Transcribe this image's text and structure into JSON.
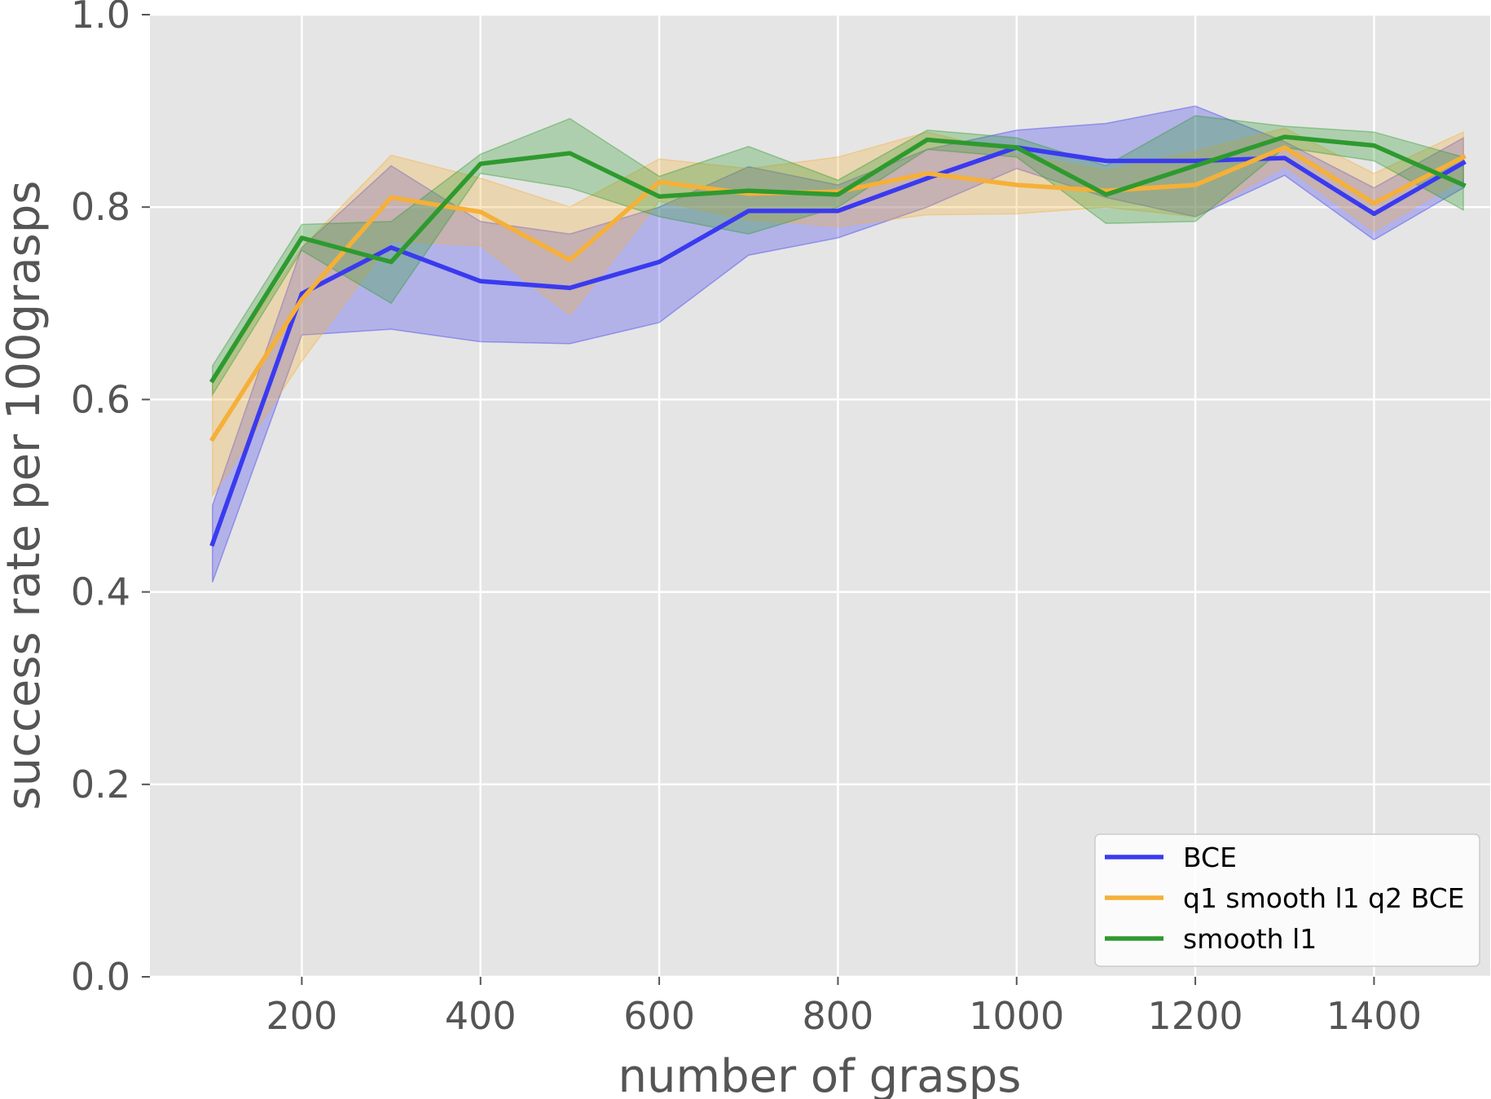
{
  "chart_data": {
    "type": "line",
    "title": "",
    "xlabel": "number of grasps",
    "ylabel": "success rate per 100grasps",
    "xlim": [
      30,
      1530
    ],
    "ylim": [
      0.0,
      1.0
    ],
    "xticks": [
      200,
      400,
      600,
      800,
      1000,
      1200,
      1400
    ],
    "yticks": [
      0.0,
      0.2,
      0.4,
      0.6,
      0.8,
      1.0
    ],
    "xtick_labels": [
      "200",
      "400",
      "600",
      "800",
      "1000",
      "1200",
      "1400"
    ],
    "ytick_labels": [
      "0.0",
      "0.2",
      "0.4",
      "0.6",
      "0.8",
      "1.0"
    ],
    "grid": true,
    "legend_position": "lower-right",
    "x": [
      100,
      200,
      300,
      400,
      500,
      600,
      700,
      800,
      900,
      1000,
      1100,
      1200,
      1300,
      1400,
      1500
    ],
    "series": [
      {
        "name": "BCE",
        "color": "#3a3af0",
        "values": [
          0.45,
          0.71,
          0.758,
          0.723,
          0.716,
          0.743,
          0.796,
          0.796,
          0.83,
          0.862,
          0.848,
          0.848,
          0.851,
          0.793,
          0.846
        ],
        "lower": [
          0.41,
          0.667,
          0.673,
          0.66,
          0.658,
          0.68,
          0.75,
          0.768,
          0.8,
          0.84,
          0.81,
          0.79,
          0.833,
          0.766,
          0.82
        ],
        "upper": [
          0.49,
          0.758,
          0.843,
          0.785,
          0.772,
          0.8,
          0.842,
          0.823,
          0.86,
          0.88,
          0.887,
          0.905,
          0.868,
          0.82,
          0.872
        ]
      },
      {
        "name": "q1 smooth l1 q2 BCE",
        "color": "#f5b038",
        "values": [
          0.559,
          0.704,
          0.81,
          0.795,
          0.745,
          0.826,
          0.814,
          0.816,
          0.835,
          0.823,
          0.817,
          0.823,
          0.862,
          0.804,
          0.852
        ],
        "lower": [
          0.5,
          0.64,
          0.765,
          0.76,
          0.688,
          0.806,
          0.787,
          0.78,
          0.792,
          0.793,
          0.8,
          0.79,
          0.843,
          0.775,
          0.83
        ],
        "upper": [
          0.62,
          0.758,
          0.854,
          0.83,
          0.8,
          0.85,
          0.84,
          0.852,
          0.878,
          0.855,
          0.838,
          0.858,
          0.882,
          0.835,
          0.878
        ]
      },
      {
        "name": "smooth l1",
        "color": "#2e9a2e",
        "values": [
          0.62,
          0.768,
          0.743,
          0.845,
          0.856,
          0.811,
          0.817,
          0.813,
          0.87,
          0.862,
          0.813,
          0.843,
          0.873,
          0.864,
          0.823
        ],
        "lower": [
          0.605,
          0.755,
          0.7,
          0.835,
          0.82,
          0.79,
          0.772,
          0.8,
          0.86,
          0.852,
          0.783,
          0.785,
          0.862,
          0.848,
          0.797
        ],
        "upper": [
          0.635,
          0.782,
          0.785,
          0.855,
          0.892,
          0.832,
          0.863,
          0.828,
          0.88,
          0.872,
          0.843,
          0.895,
          0.884,
          0.878,
          0.852
        ]
      }
    ]
  }
}
